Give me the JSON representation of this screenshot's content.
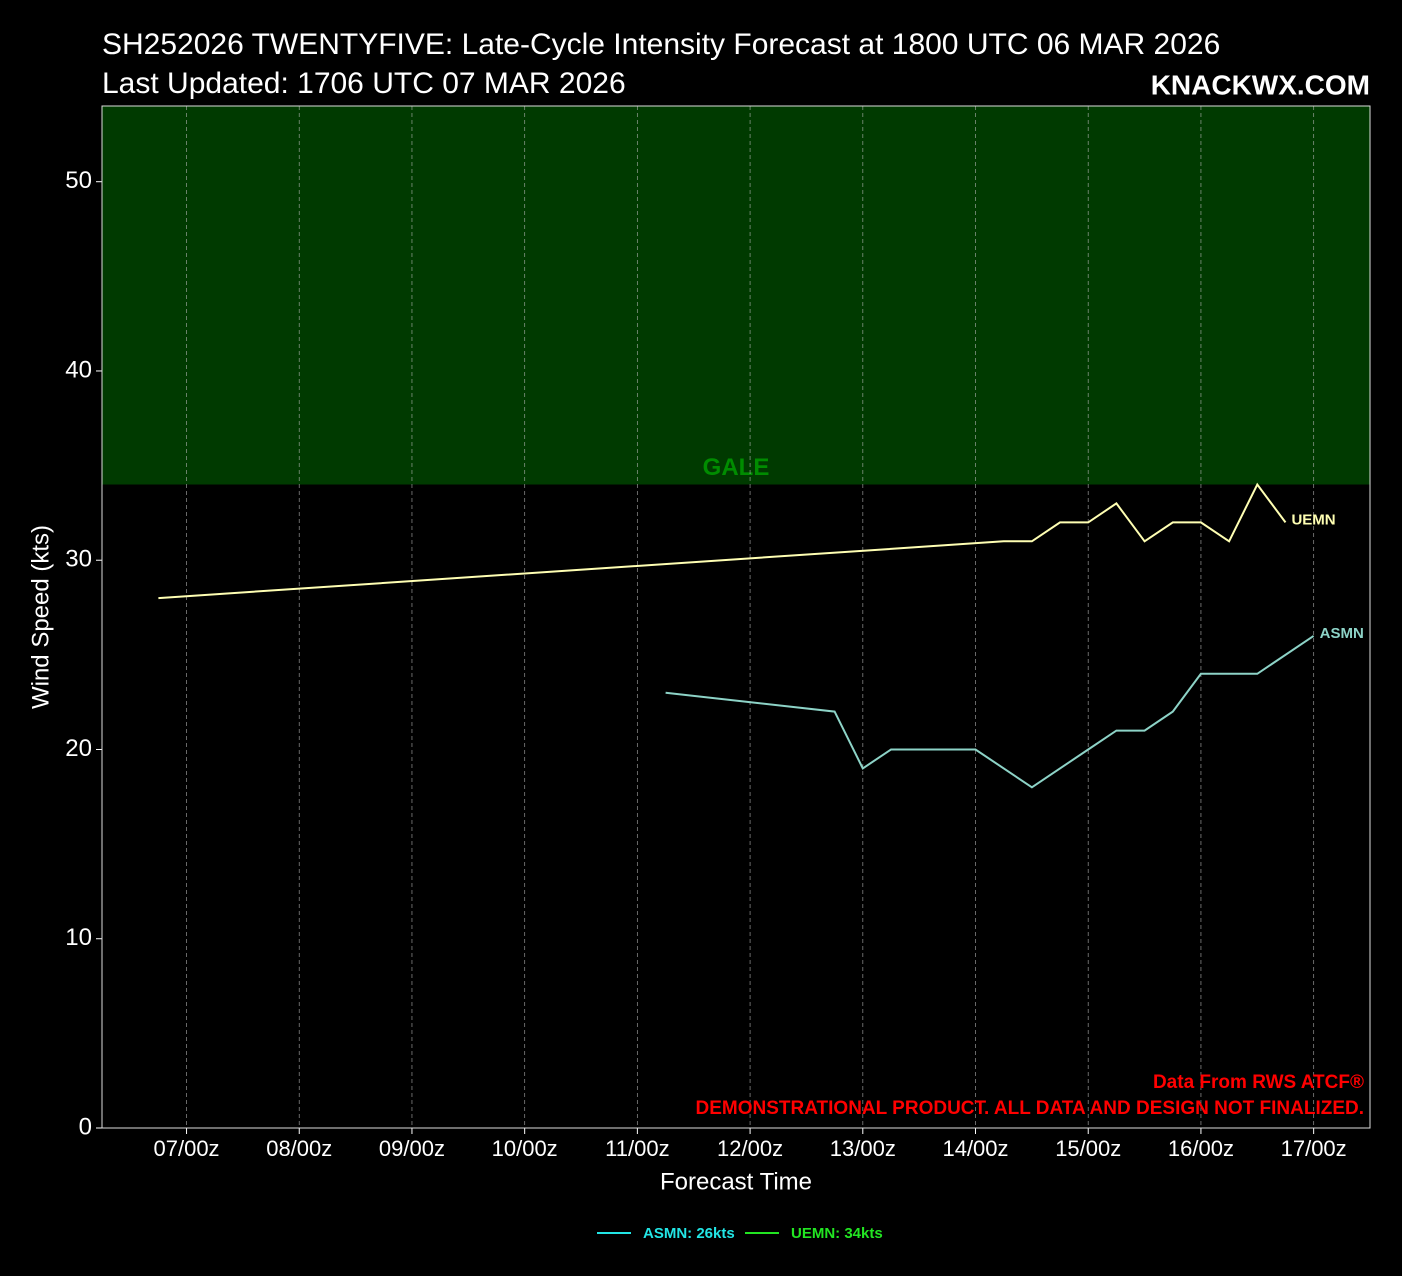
{
  "chart_data": {
    "type": "line",
    "title": "SH252026 TWENTYFIVE: Late-Cycle Intensity Forecast at 1800 UTC 06 MAR 2026",
    "subtitle": "Last Updated: 1706 UTC 07 MAR 2026",
    "brand": "KNACKWX.COM",
    "credits": [
      "Data From RWS ATCF®",
      "DEMONSTRATIONAL PRODUCT. ALL DATA AND DESIGN NOT FINALIZED."
    ],
    "xlabel": "Forecast Time",
    "ylabel": "Wind Speed (kts)",
    "xlim": [
      -12,
      258
    ],
    "xticks": [
      {
        "value": 6,
        "label": "07/00z"
      },
      {
        "value": 30,
        "label": "08/00z"
      },
      {
        "value": 54,
        "label": "09/00z"
      },
      {
        "value": 78,
        "label": "10/00z"
      },
      {
        "value": 102,
        "label": "11/00z"
      },
      {
        "value": 126,
        "label": "12/00z"
      },
      {
        "value": 150,
        "label": "13/00z"
      },
      {
        "value": 174,
        "label": "14/00z"
      },
      {
        "value": 198,
        "label": "15/00z"
      },
      {
        "value": 222,
        "label": "16/00z"
      },
      {
        "value": 246,
        "label": "17/00z"
      }
    ],
    "ylim": [
      0,
      54
    ],
    "yticks": [
      0,
      10,
      20,
      30,
      40,
      50
    ],
    "grid": true,
    "bands": [
      {
        "label": "GALE",
        "from": 34,
        "color": "#003a00",
        "label_color": "#008c00"
      }
    ],
    "series": [
      {
        "name": "UEMN",
        "color": "#ffffb3",
        "x": [
          0,
          180,
          186,
          192,
          198,
          204,
          210,
          216,
          222,
          228,
          234,
          240
        ],
        "values": [
          28,
          31,
          31,
          32,
          32,
          33,
          31,
          32,
          32,
          31,
          34,
          32
        ]
      },
      {
        "name": "ASMN",
        "color": "#8dd3c7",
        "x": [
          108,
          144,
          150,
          156,
          174,
          186,
          198,
          204,
          210,
          216,
          222,
          234,
          246
        ],
        "values": [
          23,
          22,
          19,
          20,
          20,
          18,
          20,
          21,
          21,
          22,
          24,
          24,
          26
        ]
      }
    ],
    "legend": [
      {
        "label": "ASMN: 26kts",
        "color": "#22e5e5"
      },
      {
        "label": "UEMN: 34kts",
        "color": "#22e522"
      }
    ]
  }
}
